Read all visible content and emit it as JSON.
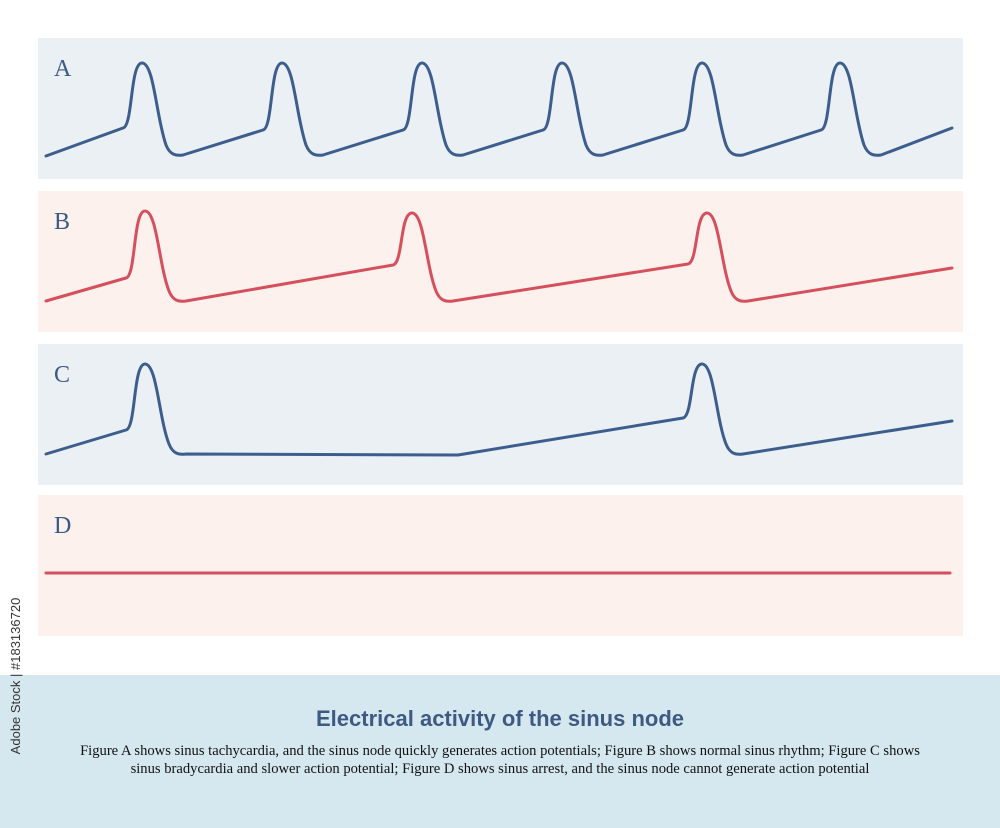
{
  "colors": {
    "blue_panel_bg": "#ebf0f5",
    "pink_panel_bg": "#fcf1ed",
    "blue_trace": "#3d5e8c",
    "red_trace": "#d64f5c",
    "label_text": "#3b5a85",
    "caption_band_bg": "#d6e8ef",
    "title_text": "#3e5a82"
  },
  "panels": [
    {
      "label": "A",
      "bg": "blue",
      "trace": "blue",
      "rhythm": "sinus tachycardia",
      "action_potentials": 6
    },
    {
      "label": "B",
      "bg": "pink",
      "trace": "red",
      "rhythm": "normal sinus rhythm",
      "action_potentials": 3
    },
    {
      "label": "C",
      "bg": "blue",
      "trace": "blue",
      "rhythm": "sinus bradycardia",
      "action_potentials": 2
    },
    {
      "label": "D",
      "bg": "pink",
      "trace": "red",
      "rhythm": "sinus arrest",
      "action_potentials": 0
    }
  ],
  "caption": {
    "title": "Electrical activity of the sinus node",
    "body": "Figure A shows sinus tachycardia, and the sinus node quickly generates action potentials; Figure B shows normal sinus rhythm; Figure C shows sinus bradycardia and slower action potential; Figure D shows sinus arrest, and the sinus node cannot generate action potential"
  },
  "stock_id": "Adobe Stock | #183136720"
}
